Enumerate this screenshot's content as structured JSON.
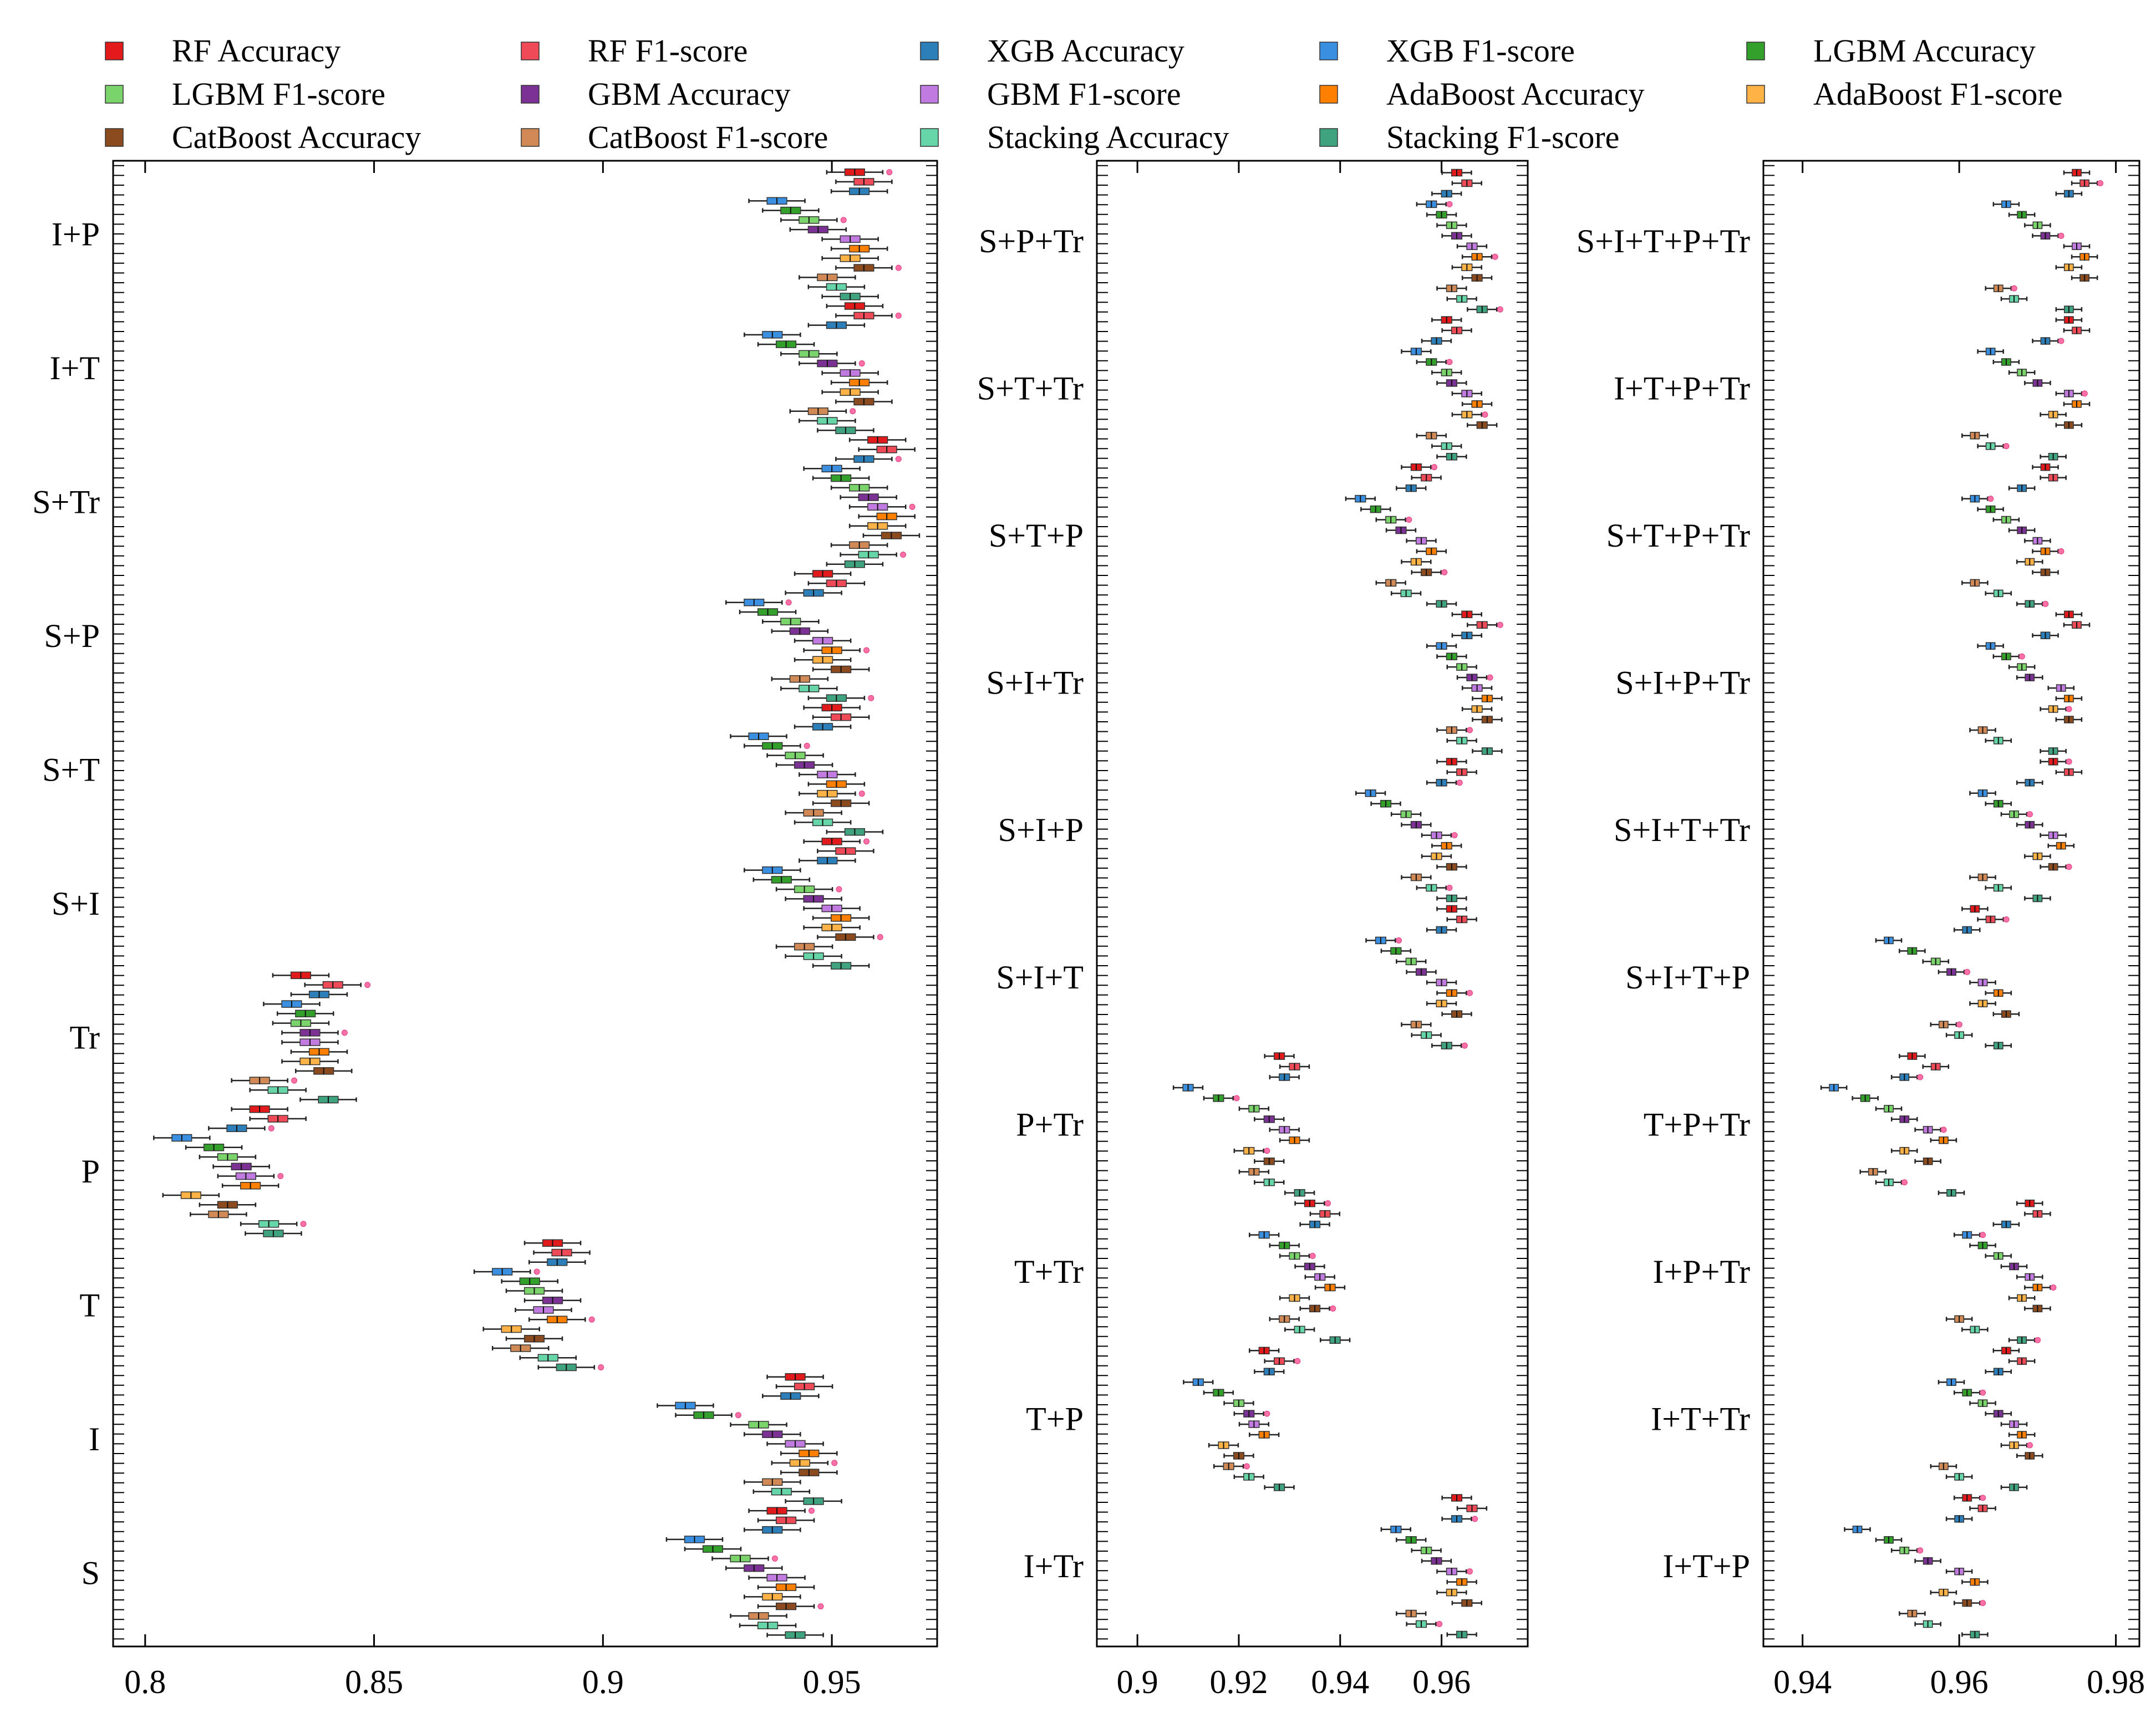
{
  "chart_data": {
    "type": "box",
    "orientation": "horizontal",
    "legend": {
      "placement": "top",
      "series": [
        {
          "name": "RF Accuracy",
          "color": "#e31a1c"
        },
        {
          "name": "RF F1-score",
          "color": "#ef4a57"
        },
        {
          "name": "XGB Accuracy",
          "color": "#2c7fb8"
        },
        {
          "name": "XGB F1-score",
          "color": "#3a8fe0"
        },
        {
          "name": "LGBM Accuracy",
          "color": "#33a02c"
        },
        {
          "name": "LGBM F1-score",
          "color": "#7bd36b"
        },
        {
          "name": "GBM Accuracy",
          "color": "#7b3294"
        },
        {
          "name": "GBM F1-score",
          "color": "#c07ae0"
        },
        {
          "name": "AdaBoost Accuracy",
          "color": "#ff7f00"
        },
        {
          "name": "AdaBoost F1-score",
          "color": "#ffb347"
        },
        {
          "name": "CatBoost Accuracy",
          "color": "#8c4a1f"
        },
        {
          "name": "CatBoost F1-score",
          "color": "#d18a55"
        },
        {
          "name": "Stacking Accuracy",
          "color": "#66d6a8"
        },
        {
          "name": "Stacking F1-score",
          "color": "#3fa37f"
        }
      ]
    },
    "panels": [
      {
        "xlim": [
          0.793,
          0.973
        ],
        "xticks": [
          0.8,
          0.85,
          0.9,
          0.95
        ],
        "xticklabels": [
          "0.8",
          "0.85",
          "0.9",
          "0.95"
        ],
        "groups": [
          {
            "label": "I+P",
            "values": [
              0.955,
              0.957,
              0.956,
              0.938,
              0.941,
              0.945,
              0.947,
              0.954,
              0.956,
              0.954,
              0.957,
              0.949,
              0.951,
              0.954
            ]
          },
          {
            "label": "I+T",
            "values": [
              0.955,
              0.957,
              0.951,
              0.937,
              0.94,
              0.945,
              0.949,
              0.954,
              0.956,
              0.954,
              0.957,
              0.947,
              0.949,
              0.953
            ]
          },
          {
            "label": "S+Tr",
            "values": [
              0.96,
              0.962,
              0.957,
              0.95,
              0.952,
              0.956,
              0.958,
              0.96,
              0.962,
              0.96,
              0.963,
              0.956,
              0.958,
              0.955
            ]
          },
          {
            "label": "S+P",
            "values": [
              0.948,
              0.951,
              0.946,
              0.933,
              0.936,
              0.941,
              0.943,
              0.948,
              0.95,
              0.948,
              0.952,
              0.943,
              0.945,
              0.951
            ]
          },
          {
            "label": "S+T",
            "values": [
              0.95,
              0.952,
              0.948,
              0.934,
              0.937,
              0.942,
              0.944,
              0.949,
              0.951,
              0.949,
              0.952,
              0.946,
              0.948,
              0.955
            ]
          },
          {
            "label": "S+I",
            "values": [
              0.95,
              0.953,
              0.949,
              0.937,
              0.939,
              0.944,
              0.946,
              0.95,
              0.952,
              0.95,
              0.953,
              0.944,
              0.946,
              0.952
            ]
          },
          {
            "label": "Tr",
            "values": [
              0.834,
              0.841,
              0.838,
              0.832,
              0.835,
              0.834,
              0.836,
              0.836,
              0.838,
              0.836,
              0.839,
              0.825,
              0.829,
              0.84
            ]
          },
          {
            "label": "P",
            "values": [
              0.825,
              0.829,
              0.82,
              0.808,
              0.815,
              0.818,
              0.821,
              0.822,
              0.823,
              0.81,
              0.818,
              0.816,
              0.827,
              0.828
            ]
          },
          {
            "label": "T",
            "values": [
              0.889,
              0.891,
              0.89,
              0.878,
              0.884,
              0.885,
              0.889,
              0.887,
              0.89,
              0.88,
              0.885,
              0.882,
              0.888,
              0.892
            ]
          },
          {
            "label": "I",
            "values": [
              0.942,
              0.944,
              0.941,
              0.918,
              0.922,
              0.934,
              0.937,
              0.942,
              0.945,
              0.943,
              0.945,
              0.937,
              0.939,
              0.946
            ]
          },
          {
            "label": "S",
            "values": [
              0.938,
              0.94,
              0.937,
              0.92,
              0.924,
              0.93,
              0.933,
              0.938,
              0.94,
              0.937,
              0.94,
              0.934,
              0.936,
              0.942
            ]
          }
        ]
      },
      {
        "xlim": [
          0.892,
          0.977
        ],
        "xticks": [
          0.9,
          0.92,
          0.94,
          0.96
        ],
        "xticklabels": [
          "0.9",
          "0.92",
          "0.94",
          "0.96"
        ],
        "groups": [
          {
            "label": "S+P+Tr",
            "values": [
              0.963,
              0.965,
              0.961,
              0.958,
              0.96,
              0.962,
              0.963,
              0.966,
              0.967,
              0.965,
              0.967,
              0.962,
              0.964,
              0.968
            ]
          },
          {
            "label": "S+T+Tr",
            "values": [
              0.961,
              0.963,
              0.959,
              0.955,
              0.958,
              0.961,
              0.962,
              0.965,
              0.967,
              0.965,
              0.968,
              0.958,
              0.961,
              0.962
            ]
          },
          {
            "label": "S+T+P",
            "values": [
              0.955,
              0.957,
              0.954,
              0.944,
              0.947,
              0.95,
              0.952,
              0.956,
              0.958,
              0.955,
              0.957,
              0.95,
              0.953,
              0.96
            ]
          },
          {
            "label": "S+I+Tr",
            "values": [
              0.965,
              0.968,
              0.965,
              0.96,
              0.962,
              0.964,
              0.966,
              0.967,
              0.969,
              0.967,
              0.969,
              0.962,
              0.964,
              0.969
            ]
          },
          {
            "label": "S+I+P",
            "values": [
              0.962,
              0.964,
              0.96,
              0.946,
              0.949,
              0.953,
              0.955,
              0.959,
              0.961,
              0.959,
              0.962,
              0.955,
              0.958,
              0.962
            ]
          },
          {
            "label": "S+I+T",
            "values": [
              0.962,
              0.964,
              0.96,
              0.948,
              0.951,
              0.954,
              0.956,
              0.96,
              0.962,
              0.96,
              0.963,
              0.955,
              0.957,
              0.961
            ]
          },
          {
            "label": "P+Tr",
            "values": [
              0.928,
              0.931,
              0.929,
              0.91,
              0.916,
              0.923,
              0.926,
              0.929,
              0.931,
              0.922,
              0.926,
              0.923,
              0.926,
              0.932
            ]
          },
          {
            "label": "T+Tr",
            "values": [
              0.934,
              0.937,
              0.935,
              0.925,
              0.929,
              0.931,
              0.934,
              0.936,
              0.938,
              0.931,
              0.935,
              0.929,
              0.932,
              0.939
            ]
          },
          {
            "label": "T+P",
            "values": [
              0.925,
              0.928,
              0.926,
              0.912,
              0.916,
              0.92,
              0.922,
              0.923,
              0.925,
              0.917,
              0.92,
              0.918,
              0.922,
              0.928
            ]
          },
          {
            "label": "I+Tr",
            "values": [
              0.963,
              0.966,
              0.963,
              0.951,
              0.954,
              0.957,
              0.959,
              0.962,
              0.964,
              0.962,
              0.965,
              0.954,
              0.956,
              0.964
            ]
          }
        ]
      },
      {
        "xlim": [
          0.935,
          0.983
        ],
        "xticks": [
          0.94,
          0.96,
          0.98
        ],
        "xticklabels": [
          "0.94",
          "0.96",
          "0.98"
        ],
        "groups": [
          {
            "label": "S+I+T+P+Tr",
            "values": [
              0.975,
              0.976,
              0.974,
              0.966,
              0.968,
              0.97,
              0.971,
              0.975,
              0.976,
              0.974,
              0.976,
              0.965,
              0.967,
              0.974
            ]
          },
          {
            "label": "I+T+P+Tr",
            "values": [
              0.974,
              0.975,
              0.971,
              0.964,
              0.966,
              0.968,
              0.97,
              0.974,
              0.975,
              0.972,
              0.974,
              0.962,
              0.964,
              0.972
            ]
          },
          {
            "label": "S+T+P+Tr",
            "values": [
              0.971,
              0.972,
              0.968,
              0.962,
              0.964,
              0.966,
              0.968,
              0.97,
              0.971,
              0.969,
              0.971,
              0.962,
              0.965,
              0.969
            ]
          },
          {
            "label": "S+I+P+Tr",
            "values": [
              0.974,
              0.975,
              0.971,
              0.964,
              0.966,
              0.968,
              0.969,
              0.973,
              0.974,
              0.972,
              0.974,
              0.963,
              0.965,
              0.972
            ]
          },
          {
            "label": "S+I+T+Tr",
            "values": [
              0.972,
              0.974,
              0.969,
              0.963,
              0.965,
              0.967,
              0.969,
              0.972,
              0.973,
              0.97,
              0.972,
              0.963,
              0.965,
              0.97
            ]
          },
          {
            "label": "S+I+T+P",
            "values": [
              0.962,
              0.964,
              0.961,
              0.951,
              0.954,
              0.957,
              0.959,
              0.963,
              0.965,
              0.963,
              0.966,
              0.958,
              0.96,
              0.965
            ]
          },
          {
            "label": "T+P+Tr",
            "values": [
              0.954,
              0.957,
              0.953,
              0.944,
              0.948,
              0.951,
              0.953,
              0.956,
              0.958,
              0.953,
              0.956,
              0.949,
              0.951,
              0.959
            ]
          },
          {
            "label": "I+P+Tr",
            "values": [
              0.969,
              0.97,
              0.966,
              0.961,
              0.963,
              0.965,
              0.967,
              0.969,
              0.97,
              0.968,
              0.97,
              0.96,
              0.962,
              0.968
            ]
          },
          {
            "label": "I+T+Tr",
            "values": [
              0.966,
              0.968,
              0.965,
              0.959,
              0.961,
              0.963,
              0.965,
              0.967,
              0.968,
              0.967,
              0.969,
              0.958,
              0.96,
              0.967
            ]
          },
          {
            "label": "I+T+P",
            "values": [
              0.961,
              0.963,
              0.96,
              0.947,
              0.951,
              0.953,
              0.956,
              0.96,
              0.962,
              0.958,
              0.961,
              0.954,
              0.956,
              0.962
            ]
          }
        ]
      }
    ]
  }
}
